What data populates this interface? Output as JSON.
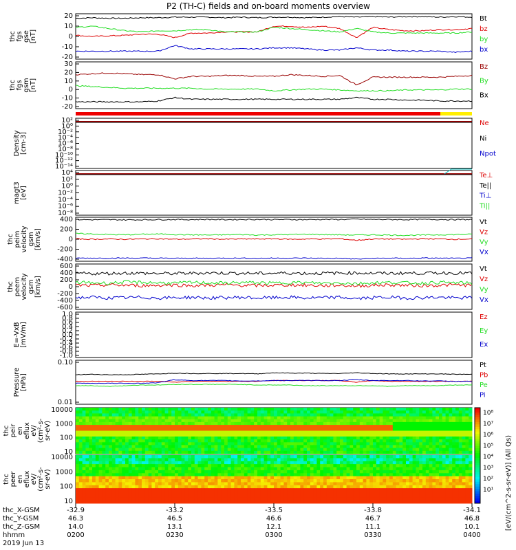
{
  "title": "P2 (TH-C) fields and on-board moments overview",
  "colors": {
    "black": "#000000",
    "red": "#dd0000",
    "green": "#22dd22",
    "blue": "#0000cc",
    "darkred": "#990000",
    "yellow": "#ffff00",
    "cyan": "#00b8b8"
  },
  "chart_data": {
    "type": "line",
    "x_ticks": [
      "0200",
      "0230",
      "0300",
      "0330",
      "0400"
    ],
    "panels": [
      {
        "id": "fgs-gse",
        "ylabel": [
          "thc",
          "fgs",
          "gse",
          "[nT]"
        ],
        "yticks": [
          "20",
          "10",
          "0",
          "-10",
          "-20"
        ],
        "ylim": [
          -20,
          20
        ],
        "legend": [
          {
            "name": "Bt",
            "color": "#000000"
          },
          {
            "name": "bz",
            "color": "#dd0000"
          },
          {
            "name": "by",
            "color": "#22dd22"
          },
          {
            "name": "bx",
            "color": "#0000cc"
          }
        ],
        "series": [
          {
            "name": "Bt",
            "color": "#000000",
            "values": [
              16,
              16.5,
              16,
              16,
              16.5,
              16.5,
              17,
              17,
              17,
              16.5,
              17,
              16.5,
              17,
              17,
              16.5,
              17,
              17.5,
              17,
              17.5,
              17,
              17.5,
              17.5,
              17,
              17.5,
              17
            ]
          },
          {
            "name": "bz",
            "color": "#dd0000",
            "values": [
              1,
              0,
              0.5,
              1,
              2,
              2,
              -1,
              3,
              3,
              4,
              4,
              4,
              9,
              9,
              8,
              9,
              7,
              -1,
              8,
              6,
              5,
              5,
              6,
              6,
              7
            ]
          },
          {
            "name": "by",
            "color": "#22dd22",
            "values": [
              8,
              9,
              7,
              5,
              4,
              5,
              5,
              6,
              6,
              4,
              4,
              4,
              8,
              7,
              6,
              5,
              4,
              7,
              4,
              3,
              3,
              3,
              3,
              3,
              4
            ]
          },
          {
            "name": "bx",
            "color": "#0000cc",
            "values": [
              -13,
              -13,
              -13,
              -13,
              -13,
              -13,
              -8,
              -11,
              -11,
              -11,
              -11,
              -11,
              -10,
              -10,
              -11,
              -12,
              -12,
              -10,
              -12,
              -12,
              -13,
              -13,
              -13,
              -14,
              -13
            ]
          }
        ]
      },
      {
        "id": "fgs-gsm",
        "ylabel": [
          "thc",
          "fgs",
          "gsm",
          "[nT]"
        ],
        "yticks": [
          "30",
          "20",
          "10",
          "0",
          "-10",
          "-20"
        ],
        "ylim": [
          -25,
          30
        ],
        "legend": [
          {
            "name": "Bz",
            "color": "#990000"
          },
          {
            "name": "By",
            "color": "#22dd22"
          },
          {
            "name": "Bx",
            "color": "#000000"
          }
        ],
        "series": [
          {
            "name": "Bz",
            "color": "#990000",
            "values": [
              15,
              16,
              17,
              16,
              15,
              15,
              10,
              13,
              13,
              14,
              14,
              13,
              13,
              15,
              14,
              13,
              14,
              3,
              12,
              12,
              12,
              12,
              12,
              13,
              14
            ]
          },
          {
            "name": "By",
            "color": "#22dd22",
            "values": [
              2,
              1,
              0,
              -1,
              -1,
              -1,
              -1,
              -1,
              -2,
              -2,
              -2,
              -2,
              -4,
              -3,
              -2,
              -2,
              -3,
              -4,
              -4,
              -4,
              -3,
              -3,
              -3,
              -2,
              -2
            ]
          },
          {
            "name": "Bx",
            "color": "#000000",
            "values": [
              -17,
              -17,
              -17,
              -17,
              -17,
              -16,
              -12,
              -14,
              -14,
              -14,
              -14,
              -14,
              -14,
              -14,
              -14,
              -14,
              -14,
              -12,
              -14,
              -14,
              -15,
              -15,
              -16,
              -16,
              -16
            ]
          }
        ]
      },
      {
        "id": "density",
        "ylabel": [
          "Density",
          "[cm-3]"
        ],
        "yticks": [
          "10²",
          "10⁰",
          "10⁻²",
          "10⁻⁴",
          "10⁻⁶",
          "10⁻⁸",
          "10⁻¹⁰",
          "10⁻¹²",
          "10⁻¹⁴"
        ],
        "legend": [
          {
            "name": "Ne",
            "color": "#dd0000"
          },
          {
            "name": "Ni",
            "color": "#000000"
          },
          {
            "name": "Npot",
            "color": "#0000cc"
          }
        ],
        "series": []
      },
      {
        "id": "magt3",
        "ylabel": [
          "magt3",
          "[eV]"
        ],
        "yticks": [
          "10⁴",
          "10²",
          "10⁰",
          "10⁻²",
          "10⁻⁴",
          "10⁻⁶",
          "10⁻⁸"
        ],
        "legend": [
          {
            "name": "Te⊥",
            "color": "#dd0000"
          },
          {
            "name": "Te||",
            "color": "#000000"
          },
          {
            "name": "Ti⊥",
            "color": "#0000cc"
          },
          {
            "name": "Ti||",
            "color": "#22dd22"
          }
        ],
        "series": []
      },
      {
        "id": "peim",
        "ylabel": [
          "thc",
          "peim",
          "velocity",
          "gsm",
          "[km/s]"
        ],
        "yticks": [
          "400",
          "200",
          "0",
          "-200",
          "-400"
        ],
        "ylim": [
          -420,
          420
        ],
        "legend": [
          {
            "name": "Vt",
            "color": "#000000"
          },
          {
            "name": "Vz",
            "color": "#dd0000"
          },
          {
            "name": "Vy",
            "color": "#22dd22"
          },
          {
            "name": "Vx",
            "color": "#0000cc"
          }
        ],
        "series": [
          {
            "name": "Vt",
            "color": "#000000",
            "values": [
              375,
              372,
              374,
              370,
              372,
              375,
              376,
              374,
              378,
              374,
              376,
              378,
              375,
              376,
              374,
              378,
              376,
              384,
              378,
              376,
              374,
              378,
              377,
              375,
              376
            ]
          },
          {
            "name": "Vz",
            "color": "#dd0000",
            "values": [
              5,
              0,
              5,
              0,
              5,
              10,
              0,
              5,
              10,
              0,
              5,
              5,
              10,
              0,
              5,
              5,
              10,
              -20,
              5,
              5,
              0,
              10,
              5,
              0,
              5
            ]
          },
          {
            "name": "Vy",
            "color": "#22dd22",
            "values": [
              110,
              100,
              90,
              85,
              95,
              100,
              90,
              85,
              80,
              85,
              90,
              80,
              85,
              90,
              95,
              90,
              85,
              80,
              85,
              80,
              75,
              80,
              85,
              90,
              95
            ]
          },
          {
            "name": "Vx",
            "color": "#0000cc",
            "values": [
              -360,
              -360,
              -362,
              -360,
              -360,
              -362,
              -365,
              -362,
              -365,
              -360,
              -362,
              -365,
              -360,
              -362,
              -360,
              -365,
              -362,
              -380,
              -365,
              -362,
              -365,
              -360,
              -362,
              -365,
              -362
            ]
          }
        ]
      },
      {
        "id": "peem",
        "ylabel": [
          "thc",
          "peem",
          "velocity",
          "gsm",
          "[km/s]"
        ],
        "yticks": [
          "600",
          "400",
          "200",
          "0",
          "-200",
          "-400",
          "-600"
        ],
        "ylim": [
          -640,
          640
        ],
        "legend": [
          {
            "name": "Vt",
            "color": "#000000"
          },
          {
            "name": "Vz",
            "color": "#dd0000"
          },
          {
            "name": "Vy",
            "color": "#22dd22"
          },
          {
            "name": "Vx",
            "color": "#0000cc"
          }
        ],
        "series": [
          {
            "name": "Vt",
            "color": "#000000",
            "values": [
              380,
              370,
              375,
              385,
              380,
              375,
              370,
              380,
              390,
              385,
              380,
              375,
              380,
              385,
              375,
              380,
              385,
              390,
              380,
              375,
              385,
              380,
              390,
              385,
              380
            ]
          },
          {
            "name": "Vz",
            "color": "#dd0000",
            "values": [
              40,
              30,
              50,
              40,
              30,
              40,
              50,
              30,
              40,
              50,
              40,
              30,
              40,
              50,
              40,
              30,
              40,
              20,
              40,
              50,
              40,
              30,
              40,
              50,
              40
            ]
          },
          {
            "name": "Vy",
            "color": "#22dd22",
            "values": [
              120,
              110,
              100,
              130,
              120,
              110,
              100,
              120,
              110,
              100,
              120,
              110,
              100,
              120,
              110,
              100,
              110,
              90,
              110,
              120,
              110,
              100,
              120,
              110,
              100
            ]
          },
          {
            "name": "Vx",
            "color": "#0000cc",
            "values": [
              -310,
              -300,
              -320,
              -310,
              -300,
              -320,
              -310,
              -300,
              -320,
              -310,
              -300,
              -320,
              -310,
              -300,
              -320,
              -310,
              -300,
              -340,
              -310,
              -300,
              -320,
              -310,
              -300,
              -320,
              -310
            ]
          }
        ]
      },
      {
        "id": "efield",
        "ylabel": [
          "E=-VxB",
          "[mV/m]"
        ],
        "yticks": [
          "1.0",
          "0.8",
          "0.6",
          "0.4",
          "0.2",
          "0.0",
          "-0.2",
          "-0.4",
          "-0.6",
          "-0.8",
          "-1.0"
        ],
        "legend": [
          {
            "name": "Ez",
            "color": "#dd0000"
          },
          {
            "name": "Ey",
            "color": "#22dd22"
          },
          {
            "name": "Ex",
            "color": "#0000cc"
          }
        ],
        "series": []
      },
      {
        "id": "pressure",
        "ylabel": [
          "Pressure",
          "[nPa]"
        ],
        "yticks": [
          "0.10",
          "0.01"
        ],
        "ylim_log": [
          0.01,
          1.0
        ],
        "legend": [
          {
            "name": "Pt",
            "color": "#000000"
          },
          {
            "name": "Pb",
            "color": "#dd0000"
          },
          {
            "name": "Pe",
            "color": "#22dd22"
          },
          {
            "name": "Pi",
            "color": "#0000cc"
          }
        ],
        "series": [
          {
            "name": "Pt",
            "color": "#000000",
            "values": [
              0.22,
              0.23,
              0.22,
              0.22,
              0.23,
              0.24,
              0.26,
              0.25,
              0.25,
              0.25,
              0.25,
              0.24,
              0.27,
              0.26,
              0.26,
              0.25,
              0.25,
              0.27,
              0.25,
              0.24,
              0.24,
              0.24,
              0.24,
              0.23,
              0.23
            ]
          },
          {
            "name": "Pb",
            "color": "#dd0000",
            "values": [
              0.11,
              0.11,
              0.11,
              0.11,
              0.11,
              0.11,
              0.1,
              0.11,
              0.11,
              0.11,
              0.11,
              0.11,
              0.12,
              0.12,
              0.12,
              0.12,
              0.12,
              0.1,
              0.12,
              0.11,
              0.11,
              0.11,
              0.11,
              0.11,
              0.11
            ]
          },
          {
            "name": "Pe",
            "color": "#22dd22",
            "values": [
              0.07,
              0.07,
              0.065,
              0.07,
              0.075,
              0.075,
              0.08,
              0.08,
              0.08,
              0.08,
              0.08,
              0.075,
              0.075,
              0.075,
              0.07,
              0.07,
              0.07,
              0.07,
              0.07,
              0.065,
              0.07,
              0.07,
              0.07,
              0.075,
              0.075
            ]
          },
          {
            "name": "Pi",
            "color": "#0000cc",
            "values": [
              0.09,
              0.09,
              0.09,
              0.09,
              0.09,
              0.095,
              0.13,
              0.12,
              0.12,
              0.12,
              0.115,
              0.115,
              0.12,
              0.12,
              0.12,
              0.12,
              0.12,
              0.13,
              0.12,
              0.12,
              0.12,
              0.115,
              0.115,
              0.11,
              0.11
            ]
          }
        ]
      },
      {
        "id": "peir",
        "ylabel": [
          "thc",
          "peir",
          "en",
          "eflux",
          "eV/",
          "(cm²-s-",
          "sr-eV)"
        ],
        "yticks": [
          "10000",
          "1000",
          "100",
          "10"
        ],
        "type": "heatmap"
      },
      {
        "id": "peer",
        "ylabel": [
          "thc",
          "peer",
          "en",
          "eflux",
          "eV/",
          "(cm²-s-",
          "sr-eV)"
        ],
        "yticks": [
          "10000",
          "1000",
          "100",
          "10"
        ],
        "type": "heatmap"
      }
    ],
    "colorbar": {
      "ticks": [
        "10⁸",
        "10⁷",
        "10⁶",
        "10⁵",
        "10⁴",
        "10³",
        "10²",
        "10¹"
      ],
      "label": "[eV/(cm^2-s-sr-eV)] (All Qs)",
      "label2": "[eV/(cm^2-s-sr-eV)] (All Qs)"
    },
    "ephemeris": [
      {
        "name": "thc_X-GSM",
        "values": [
          "-32.9",
          "-33.2",
          "-33.5",
          "-33.8",
          "-34.1"
        ]
      },
      {
        "name": "thc_Y-GSM",
        "values": [
          "46.3",
          "46.5",
          "46.6",
          "46.7",
          "46.8"
        ]
      },
      {
        "name": "thc_Z-GSM",
        "values": [
          "14.0",
          "13.1",
          "12.1",
          "11.1",
          "10.1"
        ]
      },
      {
        "name": "hhmm",
        "values": [
          "0200",
          "0230",
          "0300",
          "0330",
          "0400"
        ]
      }
    ],
    "date": "2019 Jun 13"
  }
}
